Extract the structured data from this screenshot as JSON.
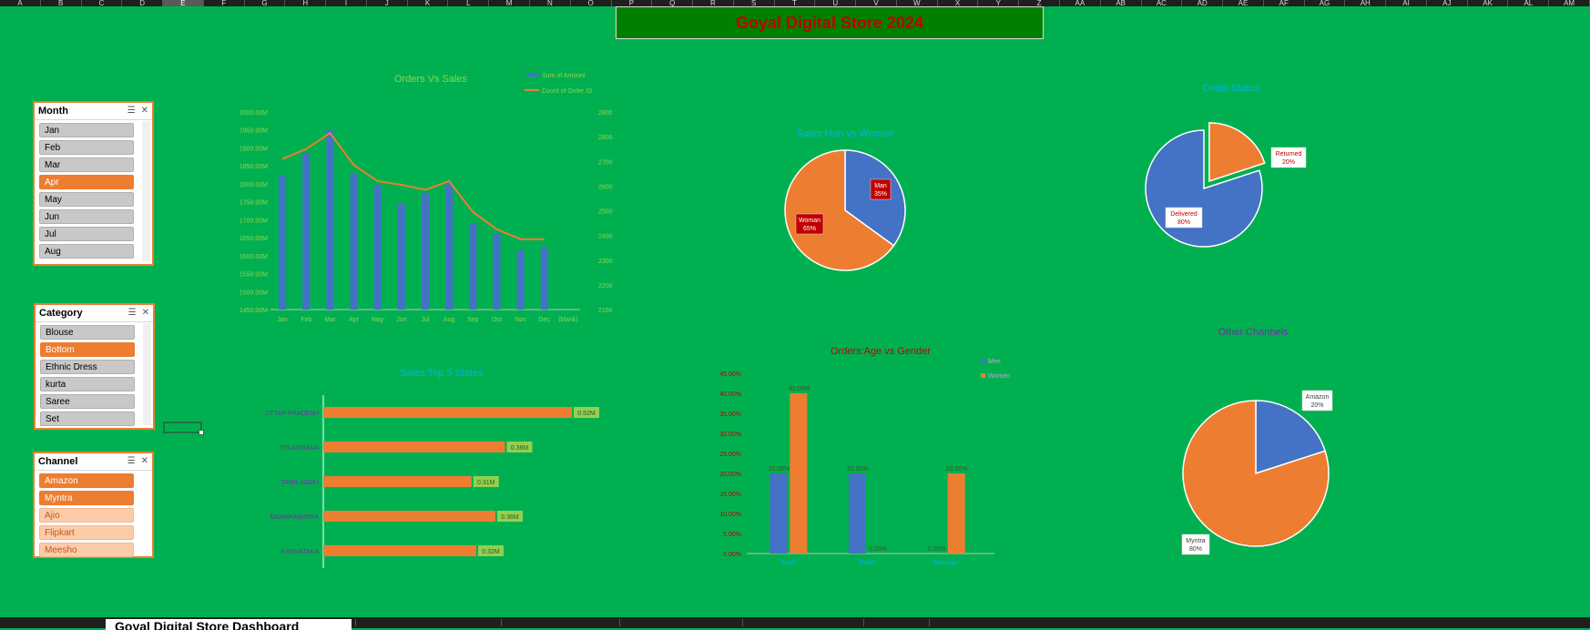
{
  "sheet": {
    "columns": [
      "A",
      "B",
      "C",
      "D",
      "E",
      "F",
      "G",
      "H",
      "I",
      "J",
      "K",
      "L",
      "M",
      "N",
      "O",
      "P",
      "Q",
      "R",
      "S",
      "T",
      "U",
      "V",
      "W",
      "X",
      "Y",
      "Z",
      "AA",
      "AB",
      "AC",
      "AD",
      "AE",
      "AF",
      "AG",
      "AH",
      "AI",
      "AJ",
      "AK",
      "AL",
      "AM"
    ],
    "selected_column": "E",
    "tab_label": "Goyal Digital Store Dashboard"
  },
  "dashboard_title": "Goyal Digital Store 2024",
  "slicers": {
    "month": {
      "title": "Month",
      "items": [
        {
          "label": "Jan",
          "state": "normal"
        },
        {
          "label": "Feb",
          "state": "normal"
        },
        {
          "label": "Mar",
          "state": "normal"
        },
        {
          "label": "Apr",
          "state": "selected"
        },
        {
          "label": "May",
          "state": "normal"
        },
        {
          "label": "Jun",
          "state": "normal"
        },
        {
          "label": "Jul",
          "state": "normal"
        },
        {
          "label": "Aug",
          "state": "normal"
        }
      ]
    },
    "category": {
      "title": "Category",
      "items": [
        {
          "label": "Blouse",
          "state": "normal"
        },
        {
          "label": "Bottom",
          "state": "selected"
        },
        {
          "label": "Ethnic Dress",
          "state": "normal"
        },
        {
          "label": "kurta",
          "state": "normal"
        },
        {
          "label": "Saree",
          "state": "normal"
        },
        {
          "label": "Set",
          "state": "normal"
        }
      ]
    },
    "channel": {
      "title": "Channel",
      "items": [
        {
          "label": "Amazon",
          "state": "selected"
        },
        {
          "label": "Myntra",
          "state": "selected"
        },
        {
          "label": "Ajio",
          "state": "peach"
        },
        {
          "label": "Flipkart",
          "state": "peach"
        },
        {
          "label": "Meesho",
          "state": "peach"
        }
      ]
    }
  },
  "colors": {
    "blue": "#4472c4",
    "orange": "#ed7d31",
    "bg": "#00b050",
    "light_green": "#92d050",
    "cyan": "#00b0f0",
    "red": "#c00000",
    "purple": "#7030a0"
  },
  "chart_data": [
    {
      "id": "orders_vs_sales",
      "type": "bar",
      "title": "Orders Vs Sales",
      "categories": [
        "Jan",
        "Feb",
        "Mar",
        "Apr",
        "May",
        "Jun",
        "Jul",
        "Aug",
        "Sep",
        "Oct",
        "Nov",
        "Dec",
        "(blank)"
      ],
      "series": [
        {
          "name": "Sum of Amount",
          "type": "bar",
          "axis": "left",
          "values": [
            1825,
            1885,
            1950,
            1830,
            1795,
            1745,
            1775,
            1800,
            1690,
            1660,
            1615,
            1625,
            null
          ]
        },
        {
          "name": "Count of Order ID",
          "type": "line",
          "axis": "right",
          "values": [
            2710,
            2750,
            2815,
            2685,
            2620,
            2605,
            2585,
            2620,
            2495,
            2425,
            2385,
            2385,
            null
          ]
        }
      ],
      "y_left": {
        "min": 1450,
        "max": 2000,
        "step": 50,
        "tick_labels": [
          "1450.00M",
          "1500.00M",
          "1550.00M",
          "1600.00M",
          "1650.00M",
          "1700.00M",
          "1750.00M",
          "1800.00M",
          "1850.00M",
          "1900.00M",
          "1950.00M",
          "2000.00M"
        ]
      },
      "y_right": {
        "min": 2100,
        "max": 2900,
        "step": 100,
        "tick_labels": [
          "2100",
          "2200",
          "2300",
          "2400",
          "2500",
          "2600",
          "2700",
          "2800",
          "2900"
        ]
      },
      "legend": "top-right"
    },
    {
      "id": "sales_man_woman",
      "type": "pie",
      "title": "Sales:Man vs Woman",
      "labels": [
        "Man",
        "Woman"
      ],
      "values": [
        35,
        65
      ],
      "data_labels": [
        "Man\n35%",
        "Woman\n65%"
      ]
    },
    {
      "id": "order_status",
      "type": "pie",
      "title": "Order Status",
      "labels": [
        "Returned",
        "Delivered"
      ],
      "values": [
        20,
        80
      ],
      "data_labels": [
        "Returned\n20%",
        "Delivered\n80%"
      ]
    },
    {
      "id": "sales_top5_states",
      "type": "bar",
      "orientation": "horizontal",
      "title": "Sales:Top 5 States",
      "categories": [
        "UTTAR PRADESH",
        "TELANGANA",
        "TAMIL NADU",
        "MAHARASHTRA",
        "KARNATAKA"
      ],
      "values": [
        0.52,
        0.38,
        0.31,
        0.36,
        0.32
      ],
      "data_labels": [
        "0.52M",
        "0.38M",
        "0.31M",
        "0.36M",
        "0.32M"
      ],
      "xlim": [
        0,
        0.6
      ]
    },
    {
      "id": "orders_age_gender",
      "type": "bar",
      "title": "Orders:Age vs Gender",
      "categories": [
        "Adult",
        "Senior",
        "Teenager"
      ],
      "series": [
        {
          "name": "Men",
          "values": [
            20,
            20,
            0
          ],
          "data_labels": [
            "20.00%",
            "20.00%",
            "0.00%"
          ]
        },
        {
          "name": "Women",
          "values": [
            40,
            0,
            20
          ],
          "data_labels": [
            "40.00%",
            "0.00%",
            "20.00%"
          ]
        }
      ],
      "ylim": [
        0,
        45
      ],
      "y_tick_labels": [
        "0.00%",
        "5.00%",
        "10.00%",
        "15.00%",
        "20.00%",
        "25.00%",
        "30.00%",
        "35.00%",
        "40.00%",
        "45.00%"
      ],
      "legend": "top-right"
    },
    {
      "id": "other_channels",
      "type": "pie",
      "title": "Other Channels",
      "labels": [
        "Amazon",
        "Myntra"
      ],
      "values": [
        20,
        80
      ],
      "data_labels": [
        "Amazon\n20%",
        "Myntra\n80%"
      ]
    }
  ]
}
